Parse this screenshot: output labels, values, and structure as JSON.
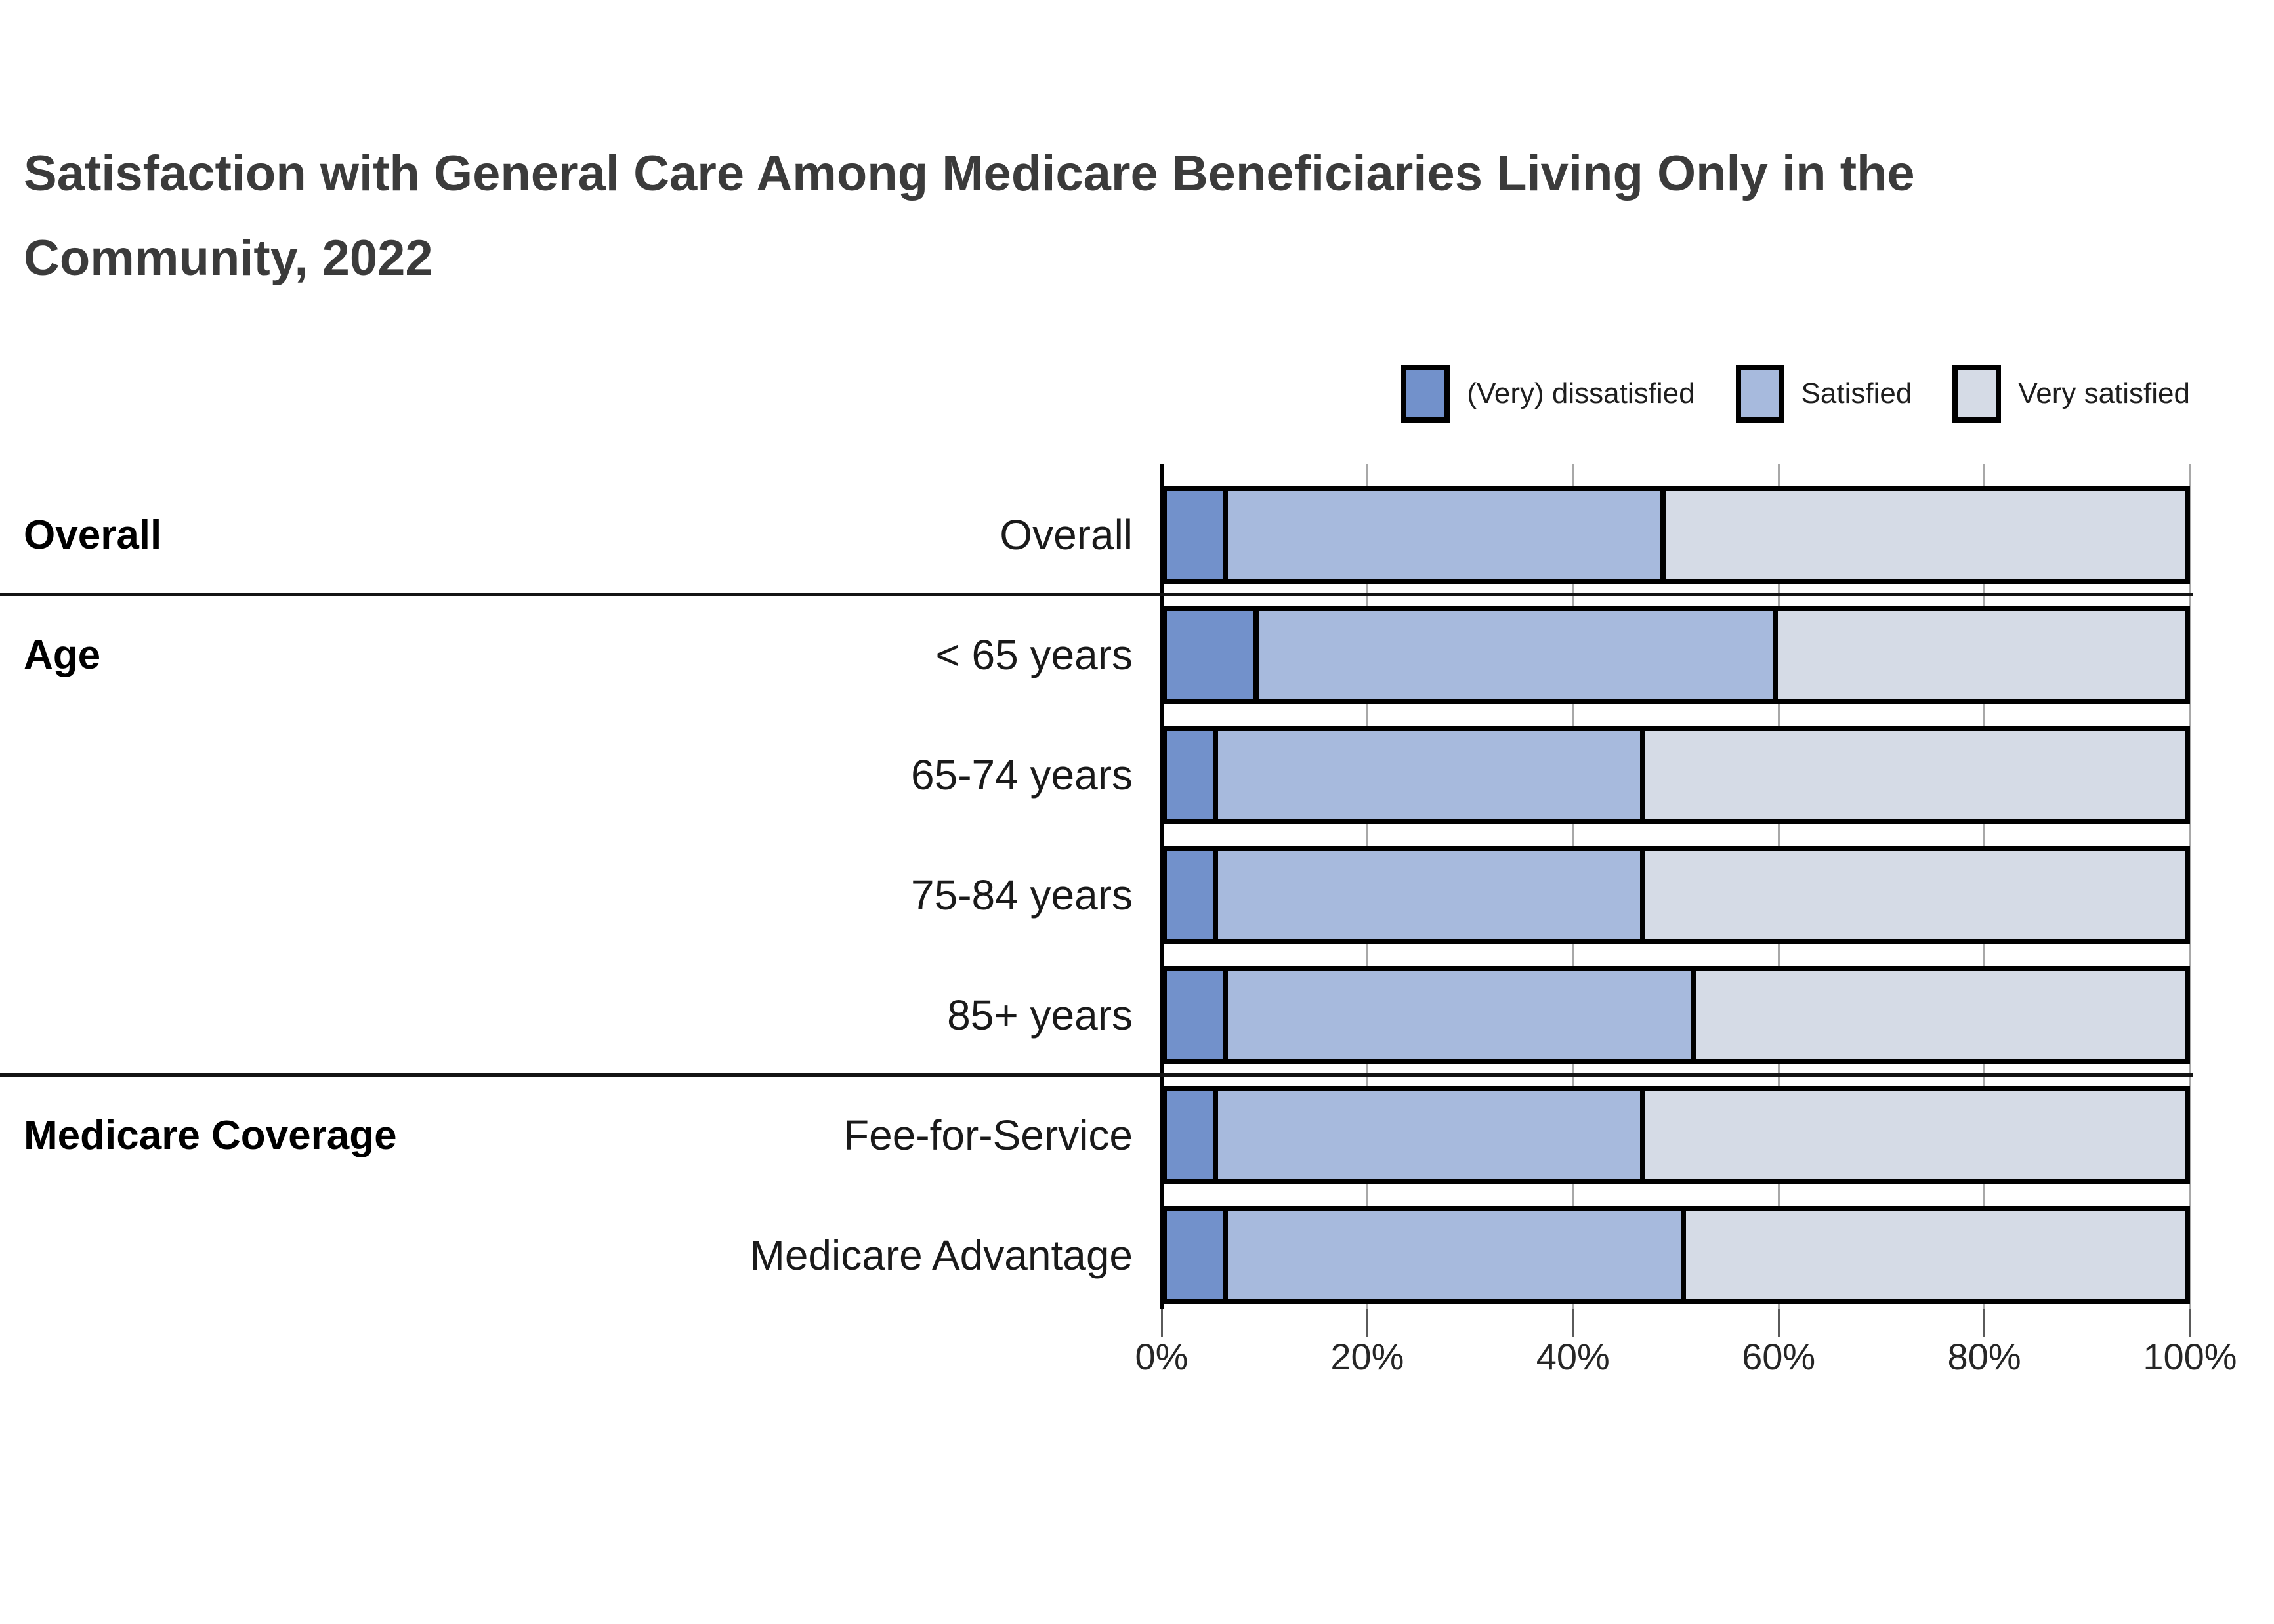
{
  "page": {
    "title_line1": "Satisfaction with General Care Among Medicare Beneficiaries Living Only in the",
    "title_line2": "Community, 2022"
  },
  "chart_data": {
    "type": "bar",
    "stacked": true,
    "orientation": "horizontal",
    "title": "Satisfaction with General Care Among Medicare Beneficiaries Living Only in the Community, 2022",
    "categories": [
      "Overall",
      "< 65 years",
      "65-74 years",
      "75-84 years",
      "85+ years",
      "Fee-for-Service",
      "Medicare Advantage"
    ],
    "groups": [
      {
        "label": "Overall",
        "categories": [
          "Overall"
        ]
      },
      {
        "label": "Age",
        "categories": [
          "< 65 years",
          "65-74 years",
          "75-84 years",
          "85+ years"
        ]
      },
      {
        "label": "Medicare Coverage",
        "categories": [
          "Fee-for-Service",
          "Medicare Advantage"
        ]
      }
    ],
    "series": [
      {
        "name": "(Very) dissatisfied",
        "color": "#7291cb",
        "values": [
          6,
          9,
          5,
          5,
          6,
          5,
          6
        ]
      },
      {
        "name": "Satisfied",
        "color": "#a7badd",
        "values": [
          43,
          51,
          42,
          42,
          46,
          42,
          45
        ]
      },
      {
        "name": "Very satisfied",
        "color": "#d5dbe6",
        "values": [
          51,
          40,
          53,
          53,
          48,
          53,
          49
        ]
      }
    ],
    "x_axis": {
      "ticks": [
        "0%",
        "20%",
        "40%",
        "60%",
        "80%",
        "100%"
      ],
      "tick_values": [
        0,
        20,
        40,
        60,
        80,
        100
      ],
      "min": 0,
      "max": 100,
      "unit": "%"
    },
    "legend_position": "top-right",
    "grid": true,
    "bar_outline_color": "#000000",
    "gridline_color": "#a8a8a8"
  }
}
